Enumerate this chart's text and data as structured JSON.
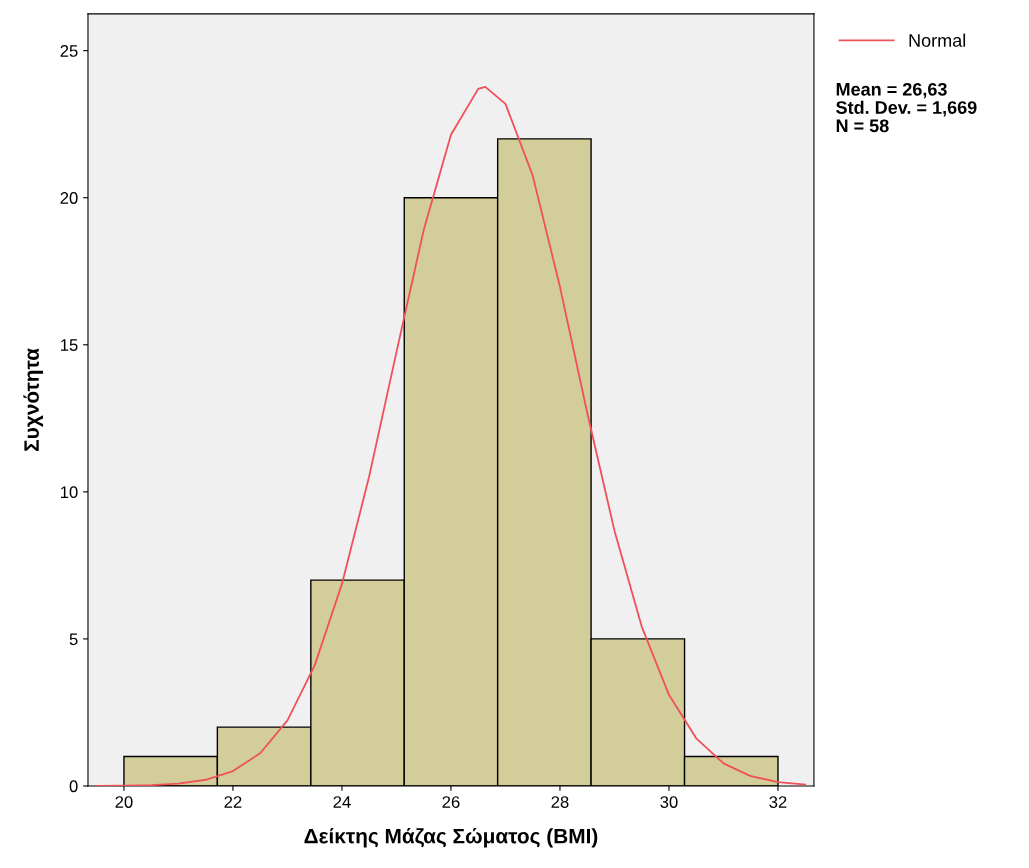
{
  "chart_data": {
    "type": "histogram",
    "xlabel": "Δείκτης Μάζας Σώματος (BMI)",
    "ylabel": "Συχνότητα",
    "bins": [
      20,
      21.714,
      23.429,
      25.143,
      26.857,
      28.571,
      30.286,
      32
    ],
    "values": [
      1,
      2,
      7,
      20,
      22,
      5,
      1
    ],
    "color": "#d3ce99",
    "series": [
      {
        "name": "Normal",
        "type": "line",
        "color": "#f0505a",
        "x": [
          19.5,
          20,
          20.5,
          21,
          21.5,
          22,
          22.5,
          23,
          23.5,
          24,
          24.5,
          25,
          25.5,
          26,
          26.5,
          26.63,
          27,
          27.5,
          28,
          28.5,
          29,
          29.5,
          30,
          30.5,
          31,
          31.5,
          32,
          32.5
        ],
        "values": [
          0.003,
          0.009,
          0.028,
          0.08,
          0.211,
          0.507,
          1.113,
          2.23,
          4.1,
          6.87,
          10.53,
          14.75,
          18.9,
          22.14,
          23.7,
          23.77,
          23.19,
          20.75,
          16.97,
          12.69,
          8.68,
          5.42,
          3.1,
          1.62,
          0.77,
          0.337,
          0.134,
          0.049
        ]
      }
    ],
    "annotations": [
      "Mean = 26,63",
      "Std. Dev. = 1,669",
      "N = 58"
    ],
    "xlim": [
      19.34,
      32.66
    ],
    "ylim": [
      0,
      26.25
    ],
    "xticks": [
      20,
      22,
      24,
      26,
      28,
      30,
      32
    ],
    "yticks": [
      0,
      5,
      10,
      15,
      20,
      25
    ],
    "grid": false,
    "legend": "top right",
    "marker": "none",
    "line_style": "solid"
  }
}
